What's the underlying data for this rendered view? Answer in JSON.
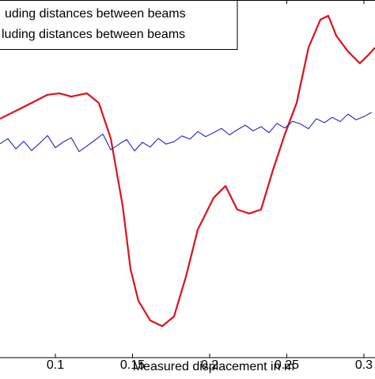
{
  "chart_data": {
    "type": "line",
    "xlabel": "Measured displacement in m",
    "xlim": [
      0.0641,
      0.3072
    ],
    "ylim": [
      0,
      100
    ],
    "xticks": [
      0.1,
      0.15,
      0.2,
      0.25,
      0.3
    ],
    "grid": false,
    "legend": "upper left",
    "series": [
      {
        "name": "uding distances between beams",
        "color": "#e0101a",
        "x": [
          0.0641,
          0.0795,
          0.0949,
          0.1026,
          0.1103,
          0.1205,
          0.1282,
          0.1359,
          0.1436,
          0.1487,
          0.1538,
          0.1615,
          0.1692,
          0.1769,
          0.1846,
          0.1923,
          0.2026,
          0.2103,
          0.2179,
          0.2256,
          0.2333,
          0.241,
          0.2487,
          0.2564,
          0.2641,
          0.2718,
          0.2769,
          0.2821,
          0.2897,
          0.2974,
          0.3026,
          0.3072
        ],
        "values": [
          66.8,
          70.1,
          73.5,
          73.9,
          73.0,
          73.9,
          71.2,
          61.3,
          42.5,
          24.8,
          15.9,
          10.4,
          8.8,
          11.5,
          22.6,
          35.8,
          44.7,
          48.0,
          41.4,
          40.3,
          41.4,
          52.4,
          62.4,
          71.2,
          86.7,
          94.5,
          95.6,
          90.0,
          85.6,
          82.3,
          84.5,
          86.7
        ]
      },
      {
        "name": "luding distances between beams",
        "color": "#1010c8",
        "x": [
          0.0641,
          0.0692,
          0.0744,
          0.0795,
          0.0846,
          0.0897,
          0.0949,
          0.1,
          0.1051,
          0.1103,
          0.1154,
          0.1205,
          0.1256,
          0.1308,
          0.1359,
          0.141,
          0.1462,
          0.1513,
          0.1564,
          0.1615,
          0.1667,
          0.1718,
          0.1769,
          0.1821,
          0.1872,
          0.1923,
          0.1974,
          0.2026,
          0.2077,
          0.2128,
          0.2179,
          0.2231,
          0.2282,
          0.2333,
          0.2385,
          0.2436,
          0.2487,
          0.2538,
          0.259,
          0.2641,
          0.2692,
          0.2744,
          0.2795,
          0.2846,
          0.2897,
          0.2949,
          0.3,
          0.3051
        ],
        "values": [
          59.8,
          61.2,
          58.4,
          60.5,
          57.9,
          59.9,
          62.1,
          58.7,
          60.3,
          61.5,
          57.6,
          59.2,
          60.8,
          62.5,
          58.1,
          59.6,
          61.0,
          57.8,
          60.2,
          58.9,
          61.3,
          59.7,
          60.4,
          62.0,
          61.1,
          63.2,
          61.8,
          62.9,
          64.1,
          62.3,
          63.7,
          65.0,
          63.4,
          64.6,
          62.9,
          65.5,
          64.2,
          66.1,
          65.3,
          64.0,
          66.8,
          65.7,
          67.2,
          66.0,
          68.1,
          66.5,
          67.4,
          68.6
        ]
      }
    ]
  }
}
